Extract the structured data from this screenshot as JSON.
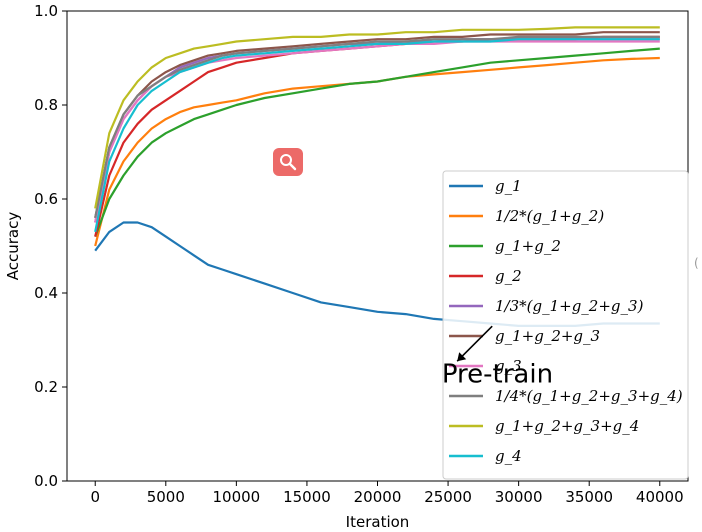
{
  "chart_data": {
    "type": "line",
    "title": "",
    "xlabel": "Iteration",
    "ylabel": "Accuracy",
    "xlim": [
      -2000,
      42000
    ],
    "ylim": [
      0.0,
      1.0
    ],
    "x_ticks": [
      0,
      5000,
      10000,
      15000,
      20000,
      25000,
      30000,
      35000,
      40000
    ],
    "x_tick_labels": [
      "0",
      "5000",
      "10000",
      "15000",
      "20000",
      "25000",
      "30000",
      "35000",
      "40000"
    ],
    "y_ticks": [
      0.0,
      0.2,
      0.4,
      0.6,
      0.8,
      1.0
    ],
    "y_tick_labels": [
      "0.0",
      "0.2",
      "0.4",
      "0.6",
      "0.8",
      "1.0"
    ],
    "grid": false,
    "legend_position": "lower-right",
    "x": [
      0,
      1000,
      2000,
      3000,
      4000,
      5000,
      6000,
      7000,
      8000,
      9000,
      10000,
      12000,
      14000,
      16000,
      18000,
      20000,
      22000,
      24000,
      26000,
      28000,
      30000,
      32000,
      34000,
      36000,
      38000,
      40000
    ],
    "series": [
      {
        "name": "g_1",
        "color": "#1f77b4",
        "values": [
          0.49,
          0.53,
          0.55,
          0.55,
          0.54,
          0.52,
          0.5,
          0.48,
          0.46,
          0.45,
          0.44,
          0.42,
          0.4,
          0.38,
          0.37,
          0.36,
          0.355,
          0.345,
          0.34,
          0.335,
          0.33,
          0.33,
          0.33,
          0.335,
          0.335,
          0.335
        ]
      },
      {
        "name": "1/2*(g_1+g_2)",
        "color": "#ff7f0e",
        "values": [
          0.5,
          0.62,
          0.68,
          0.72,
          0.75,
          0.77,
          0.785,
          0.795,
          0.8,
          0.805,
          0.81,
          0.825,
          0.835,
          0.84,
          0.845,
          0.85,
          0.86,
          0.865,
          0.87,
          0.875,
          0.88,
          0.885,
          0.89,
          0.895,
          0.898,
          0.9
        ]
      },
      {
        "name": "g_1+g_2",
        "color": "#2ca02c",
        "values": [
          0.52,
          0.6,
          0.65,
          0.69,
          0.72,
          0.74,
          0.755,
          0.77,
          0.78,
          0.79,
          0.8,
          0.815,
          0.825,
          0.835,
          0.845,
          0.85,
          0.86,
          0.87,
          0.88,
          0.89,
          0.895,
          0.9,
          0.905,
          0.91,
          0.915,
          0.92
        ]
      },
      {
        "name": "g_2",
        "color": "#d62728",
        "values": [
          0.52,
          0.65,
          0.72,
          0.76,
          0.79,
          0.81,
          0.83,
          0.85,
          0.87,
          0.88,
          0.89,
          0.9,
          0.91,
          0.915,
          0.92,
          0.925,
          0.93,
          0.935,
          0.935,
          0.94,
          0.94,
          0.94,
          0.94,
          0.945,
          0.945,
          0.945
        ]
      },
      {
        "name": "1/3*(g_1+g_2+g_3)",
        "color": "#9467bd",
        "values": [
          0.55,
          0.7,
          0.77,
          0.81,
          0.84,
          0.86,
          0.88,
          0.89,
          0.9,
          0.905,
          0.91,
          0.915,
          0.92,
          0.925,
          0.93,
          0.93,
          0.935,
          0.935,
          0.94,
          0.94,
          0.94,
          0.94,
          0.94,
          0.94,
          0.94,
          0.94
        ]
      },
      {
        "name": "g_1+g_2+g_3",
        "color": "#8c564b",
        "values": [
          0.56,
          0.71,
          0.78,
          0.82,
          0.85,
          0.87,
          0.885,
          0.895,
          0.905,
          0.91,
          0.915,
          0.92,
          0.925,
          0.93,
          0.935,
          0.94,
          0.94,
          0.945,
          0.945,
          0.95,
          0.95,
          0.95,
          0.95,
          0.955,
          0.955,
          0.955
        ]
      },
      {
        "name": "g_3",
        "color": "#e377c2",
        "values": [
          0.55,
          0.7,
          0.77,
          0.81,
          0.84,
          0.86,
          0.87,
          0.88,
          0.89,
          0.895,
          0.9,
          0.905,
          0.91,
          0.915,
          0.92,
          0.925,
          0.93,
          0.93,
          0.935,
          0.935,
          0.935,
          0.935,
          0.935,
          0.935,
          0.935,
          0.935
        ]
      },
      {
        "name": "1/4*(g_1+g_2+g_3+g_4)",
        "color": "#7f7f7f",
        "values": [
          0.56,
          0.71,
          0.78,
          0.82,
          0.84,
          0.86,
          0.875,
          0.885,
          0.895,
          0.905,
          0.91,
          0.915,
          0.92,
          0.925,
          0.93,
          0.935,
          0.935,
          0.94,
          0.94,
          0.94,
          0.945,
          0.945,
          0.945,
          0.945,
          0.945,
          0.945
        ]
      },
      {
        "name": "g_1+g_2+g_3+g_4",
        "color": "#bcbd22",
        "values": [
          0.58,
          0.74,
          0.81,
          0.85,
          0.88,
          0.9,
          0.91,
          0.92,
          0.925,
          0.93,
          0.935,
          0.94,
          0.945,
          0.945,
          0.95,
          0.95,
          0.955,
          0.955,
          0.96,
          0.96,
          0.96,
          0.962,
          0.965,
          0.965,
          0.965,
          0.965
        ]
      },
      {
        "name": "g_4",
        "color": "#17becf",
        "values": [
          0.53,
          0.68,
          0.75,
          0.8,
          0.83,
          0.85,
          0.87,
          0.88,
          0.89,
          0.9,
          0.905,
          0.91,
          0.915,
          0.92,
          0.925,
          0.93,
          0.93,
          0.935,
          0.935,
          0.935,
          0.94,
          0.94,
          0.94,
          0.94,
          0.94,
          0.94
        ]
      }
    ],
    "annotations": [
      {
        "text": "Pre-train",
        "points_to": {
          "x": 26000,
          "y": 0.34
        },
        "text_at": {
          "x": 28500,
          "y": 0.21
        }
      }
    ]
  },
  "icons": {
    "badge": "search-icon",
    "badge_color": "#ec6a68"
  },
  "edge_text": "("
}
